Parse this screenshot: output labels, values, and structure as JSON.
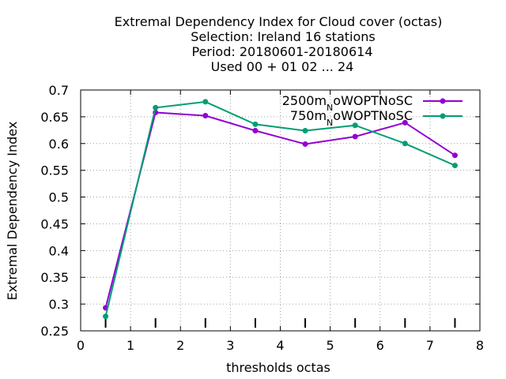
{
  "chart_data": {
    "type": "line",
    "title_lines": [
      "Extremal Dependency Index  for Cloud cover (octas)",
      "Selection: Ireland      16 stations",
      "Period: 20180601-20180614",
      "Used  00 + 01 02 ... 24"
    ],
    "xlabel": "thresholds octas",
    "ylabel": "Extremal Dependency Index",
    "xlim": [
      0,
      8
    ],
    "ylim": [
      0.25,
      0.7
    ],
    "xticks": [
      "0",
      "1",
      "2",
      "3",
      "4",
      "5",
      "6",
      "7",
      "8"
    ],
    "yticks": [
      "0.25",
      "0.3",
      "0.35",
      "0.4",
      "0.45",
      "0.5",
      "0.55",
      "0.6",
      "0.65",
      "0.7"
    ],
    "grid": true,
    "legend_position": "top-right",
    "threshold_marks": [
      0.5,
      1.5,
      2.5,
      3.5,
      4.5,
      5.5,
      6.5,
      7.5
    ],
    "x": [
      0.5,
      1.5,
      2.5,
      3.5,
      4.5,
      5.5,
      6.5,
      7.5
    ],
    "series": [
      {
        "name_main": "2500m",
        "name_sub": "N",
        "name_rest": "oWOPTNoSC",
        "color": "#9400d3",
        "values": [
          0.293,
          0.658,
          0.652,
          0.624,
          0.599,
          0.613,
          0.639,
          0.578
        ]
      },
      {
        "name_main": "750m",
        "name_sub": "N",
        "name_rest": "oWOPTNoSC",
        "color": "#009e73",
        "values": [
          0.277,
          0.667,
          0.678,
          0.636,
          0.624,
          0.634,
          0.6,
          0.559
        ]
      }
    ]
  }
}
